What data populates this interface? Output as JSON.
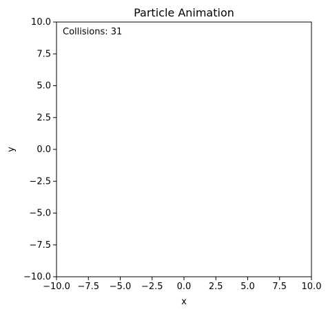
{
  "chart_data": {
    "type": "scatter",
    "title": "Particle Animation",
    "xlabel": "x",
    "ylabel": "y",
    "xlim": [
      -10,
      10
    ],
    "ylim": [
      -10,
      10
    ],
    "xticks": [
      -10,
      -7.5,
      -5,
      -2.5,
      0,
      2.5,
      5,
      7.5,
      10
    ],
    "yticks": [
      -10,
      -7.5,
      -5,
      -2.5,
      0,
      2.5,
      5,
      7.5,
      10
    ],
    "xtick_labels": [
      "−10.0",
      "−7.5",
      "−5.0",
      "−2.5",
      "0.0",
      "2.5",
      "5.0",
      "7.5",
      "10.0"
    ],
    "ytick_labels": [
      "−10.0",
      "−7.5",
      "−5.0",
      "−2.5",
      "0.0",
      "2.5",
      "5.0",
      "7.5",
      "10.0"
    ],
    "grid": false,
    "legend": "none",
    "annotation": "Collisions: 31",
    "series": [
      {
        "x": [],
        "y": []
      }
    ]
  }
}
